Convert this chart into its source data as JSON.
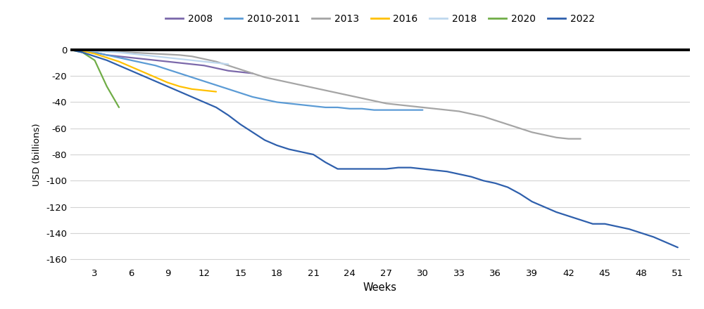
{
  "xlabel": "Weeks",
  "ylabel": "USD (billions)",
  "series": {
    "2008": {
      "color": "#7B68AA",
      "weeks": [
        1,
        2,
        3,
        4,
        5,
        6,
        7,
        8,
        9,
        10,
        11,
        12,
        13,
        14,
        15,
        16
      ],
      "values": [
        0,
        -1,
        -2,
        -4,
        -5,
        -6,
        -7,
        -8,
        -9,
        -10,
        -11,
        -12,
        -14,
        -16,
        -17,
        -18
      ]
    },
    "2010-2011": {
      "color": "#5B9BD5",
      "weeks": [
        1,
        2,
        3,
        4,
        5,
        6,
        7,
        8,
        9,
        10,
        11,
        12,
        13,
        14,
        15,
        16,
        17,
        18,
        19,
        20,
        21,
        22,
        23,
        24,
        25,
        26,
        27,
        28,
        29,
        30
      ],
      "values": [
        0,
        -1,
        -2,
        -4,
        -6,
        -8,
        -10,
        -12,
        -15,
        -18,
        -21,
        -24,
        -27,
        -30,
        -33,
        -36,
        -38,
        -40,
        -41,
        -42,
        -43,
        -44,
        -44,
        -45,
        -45,
        -46,
        -46,
        -46,
        -46,
        -46
      ]
    },
    "2013": {
      "color": "#A5A5A5",
      "weeks": [
        1,
        2,
        3,
        4,
        5,
        6,
        7,
        8,
        9,
        10,
        11,
        12,
        13,
        14,
        15,
        16,
        17,
        18,
        19,
        20,
        21,
        22,
        23,
        24,
        25,
        26,
        27,
        28,
        29,
        30,
        31,
        32,
        33,
        34,
        35,
        36,
        37,
        38,
        39,
        40,
        41,
        42,
        43
      ],
      "values": [
        0,
        -0.3,
        -0.6,
        -1,
        -1.5,
        -2,
        -2.5,
        -3,
        -3.5,
        -4,
        -5,
        -7,
        -9,
        -12,
        -15,
        -18,
        -21,
        -23,
        -25,
        -27,
        -29,
        -31,
        -33,
        -35,
        -37,
        -39,
        -41,
        -42,
        -43,
        -44,
        -45,
        -46,
        -47,
        -49,
        -51,
        -54,
        -57,
        -60,
        -63,
        -65,
        -67,
        -68,
        -68
      ]
    },
    "2016": {
      "color": "#FFC000",
      "weeks": [
        1,
        2,
        3,
        4,
        5,
        6,
        7,
        8,
        9,
        10,
        11,
        12,
        13
      ],
      "values": [
        0,
        -1,
        -3,
        -6,
        -9,
        -13,
        -17,
        -21,
        -25,
        -28,
        -30,
        -31,
        -32
      ]
    },
    "2018": {
      "color": "#BDD7EE",
      "weeks": [
        1,
        2,
        3,
        4,
        5,
        6,
        7,
        8,
        9,
        10,
        11,
        12,
        13,
        14
      ],
      "values": [
        0,
        -0.5,
        -1,
        -1.5,
        -2,
        -3,
        -4,
        -5,
        -6,
        -7,
        -8,
        -9,
        -10,
        -11
      ]
    },
    "2020": {
      "color": "#70AD47",
      "weeks": [
        1,
        2,
        3,
        4,
        5
      ],
      "values": [
        0,
        -2,
        -8,
        -28,
        -44
      ]
    },
    "2022": {
      "color": "#2E5FAC",
      "weeks": [
        1,
        2,
        3,
        4,
        5,
        6,
        7,
        8,
        9,
        10,
        11,
        12,
        13,
        14,
        15,
        16,
        17,
        18,
        19,
        20,
        21,
        22,
        23,
        24,
        25,
        26,
        27,
        28,
        29,
        30,
        31,
        32,
        33,
        34,
        35,
        36,
        37,
        38,
        39,
        40,
        41,
        42,
        43,
        44,
        45,
        46,
        47,
        48,
        49,
        50,
        51
      ],
      "values": [
        0,
        -2,
        -5,
        -8,
        -12,
        -16,
        -20,
        -24,
        -28,
        -32,
        -36,
        -40,
        -44,
        -50,
        -57,
        -63,
        -69,
        -73,
        -76,
        -78,
        -80,
        -86,
        -91,
        -91,
        -91,
        -91,
        -91,
        -90,
        -90,
        -91,
        -92,
        -93,
        -95,
        -97,
        -100,
        -102,
        -105,
        -110,
        -116,
        -120,
        -124,
        -127,
        -130,
        -133,
        -133,
        -135,
        -137,
        -140,
        -143,
        -147,
        -151
      ]
    }
  },
  "ylim": [
    -165,
    5
  ],
  "xlim": [
    1,
    52
  ],
  "yticks": [
    0,
    -20,
    -40,
    -60,
    -80,
    -100,
    -120,
    -140,
    -160
  ],
  "xticks": [
    3,
    6,
    9,
    12,
    15,
    18,
    21,
    24,
    27,
    30,
    33,
    36,
    39,
    42,
    45,
    48,
    51
  ],
  "background_color": "#FFFFFF",
  "grid_color": "#D3D3D3",
  "zero_line_color": "#000000",
  "legend_order": [
    "2008",
    "2010-2011",
    "2013",
    "2016",
    "2018",
    "2020",
    "2022"
  ]
}
